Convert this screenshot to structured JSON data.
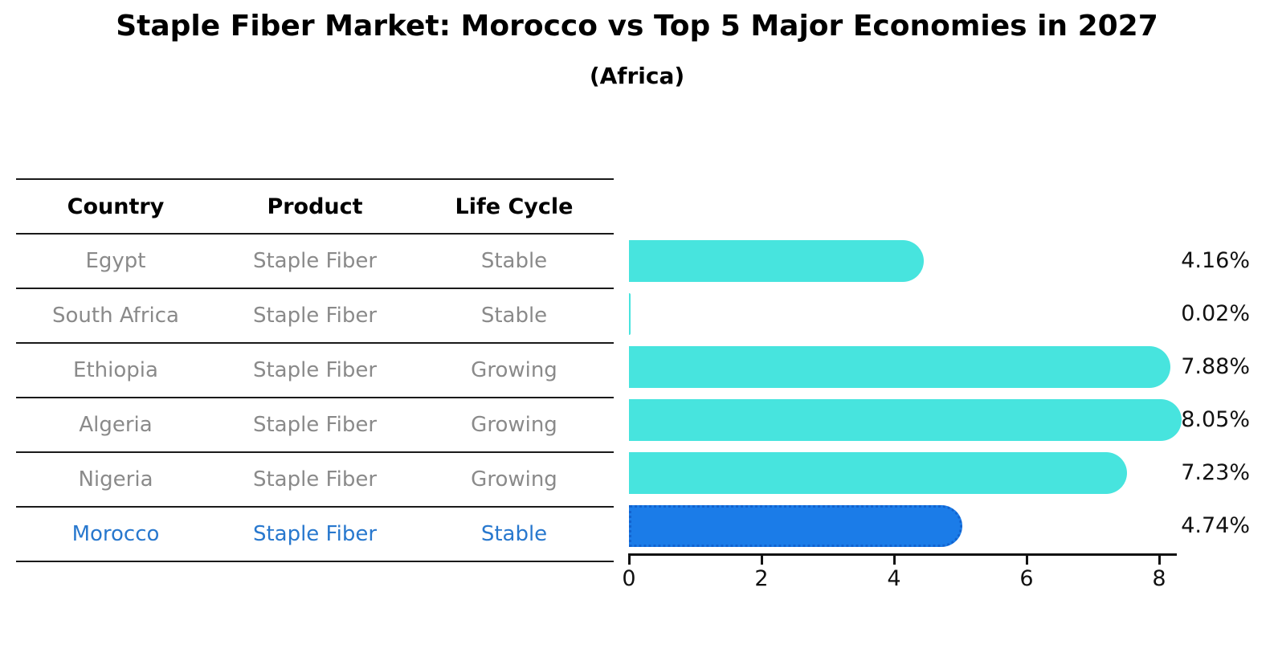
{
  "title": "Staple Fiber Market: Morocco vs Top 5 Major Economies in 2027",
  "subtitle": "(Africa)",
  "colors": {
    "bar_default": "#47E4DE",
    "bar_highlight": "#1B7CE8",
    "bar_highlight_border": "#1263CF",
    "highlight_text": "#2878CE",
    "row_text": "#8A8A8A",
    "header_text": "#000000",
    "axis": "#111111",
    "value_label": "#111111"
  },
  "table": {
    "headers": [
      "Country",
      "Product",
      "Life Cycle"
    ],
    "rows": [
      {
        "country": "Egypt",
        "product": "Staple Fiber",
        "life_cycle": "Stable",
        "highlight": false
      },
      {
        "country": "South Africa",
        "product": "Staple Fiber",
        "life_cycle": "Stable",
        "highlight": false
      },
      {
        "country": "Ethiopia",
        "product": "Staple Fiber",
        "life_cycle": "Growing",
        "highlight": false
      },
      {
        "country": "Algeria",
        "product": "Staple Fiber",
        "life_cycle": "Growing",
        "highlight": false
      },
      {
        "country": "Nigeria",
        "product": "Staple Fiber",
        "life_cycle": "Growing",
        "highlight": false
      },
      {
        "country": "Morocco",
        "product": "Staple Fiber",
        "life_cycle": "Stable",
        "highlight": true
      }
    ]
  },
  "chart_data": {
    "type": "bar",
    "orientation": "horizontal",
    "title": "Staple Fiber Market: Morocco vs Top 5 Major Economies in 2027 (Africa)",
    "categories": [
      "Egypt",
      "South Africa",
      "Ethiopia",
      "Algeria",
      "Nigeria",
      "Morocco"
    ],
    "values": [
      4.16,
      0.02,
      7.88,
      8.05,
      7.23,
      4.74
    ],
    "value_labels": [
      "4.16%",
      "0.02%",
      "7.88%",
      "8.05%",
      "7.23%",
      "4.74%"
    ],
    "highlight_index": 5,
    "x_ticks": [
      "0",
      "2",
      "4",
      "6",
      "8"
    ],
    "x_tick_values": [
      0,
      2,
      4,
      6,
      8
    ],
    "xlim": [
      0,
      8.5
    ],
    "xlabel": "",
    "ylabel": "",
    "grid": false,
    "legend": false
  }
}
